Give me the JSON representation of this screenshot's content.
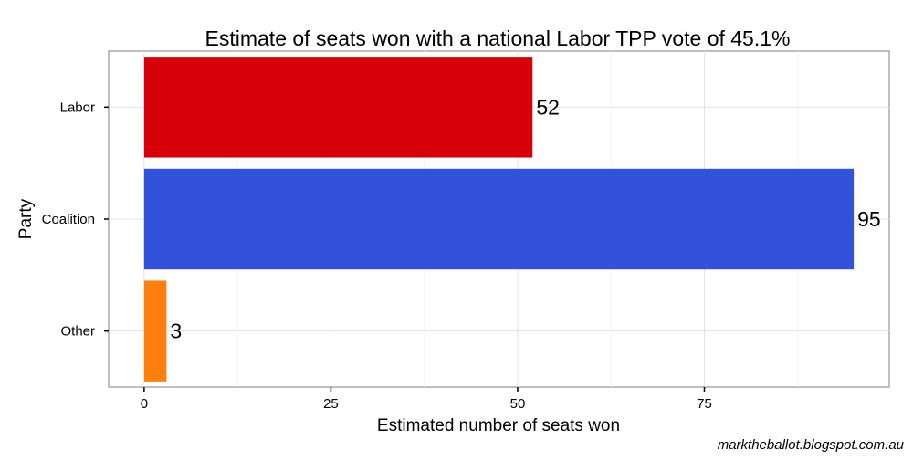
{
  "chart_data": {
    "type": "bar",
    "orientation": "horizontal",
    "title": "Estimate of seats won with a national Labor TPP vote of 45.1%",
    "xlabel": "Estimated number of seats won",
    "ylabel": "Party",
    "categories": [
      "Labor",
      "Coalition",
      "Other"
    ],
    "values": [
      52,
      95,
      3
    ],
    "data_labels": [
      "52",
      "95",
      "3"
    ],
    "colors": [
      "#d50008",
      "#3352da",
      "#ff7f0e"
    ],
    "xlim": [
      -4.75,
      99.75
    ],
    "xticks": [
      0,
      25,
      50,
      75
    ],
    "xtick_labels": [
      "0",
      "25",
      "50",
      "75"
    ],
    "grid": true,
    "legend": "none"
  },
  "footer": {
    "credit": "marktheballot.blogspot.com.au"
  }
}
